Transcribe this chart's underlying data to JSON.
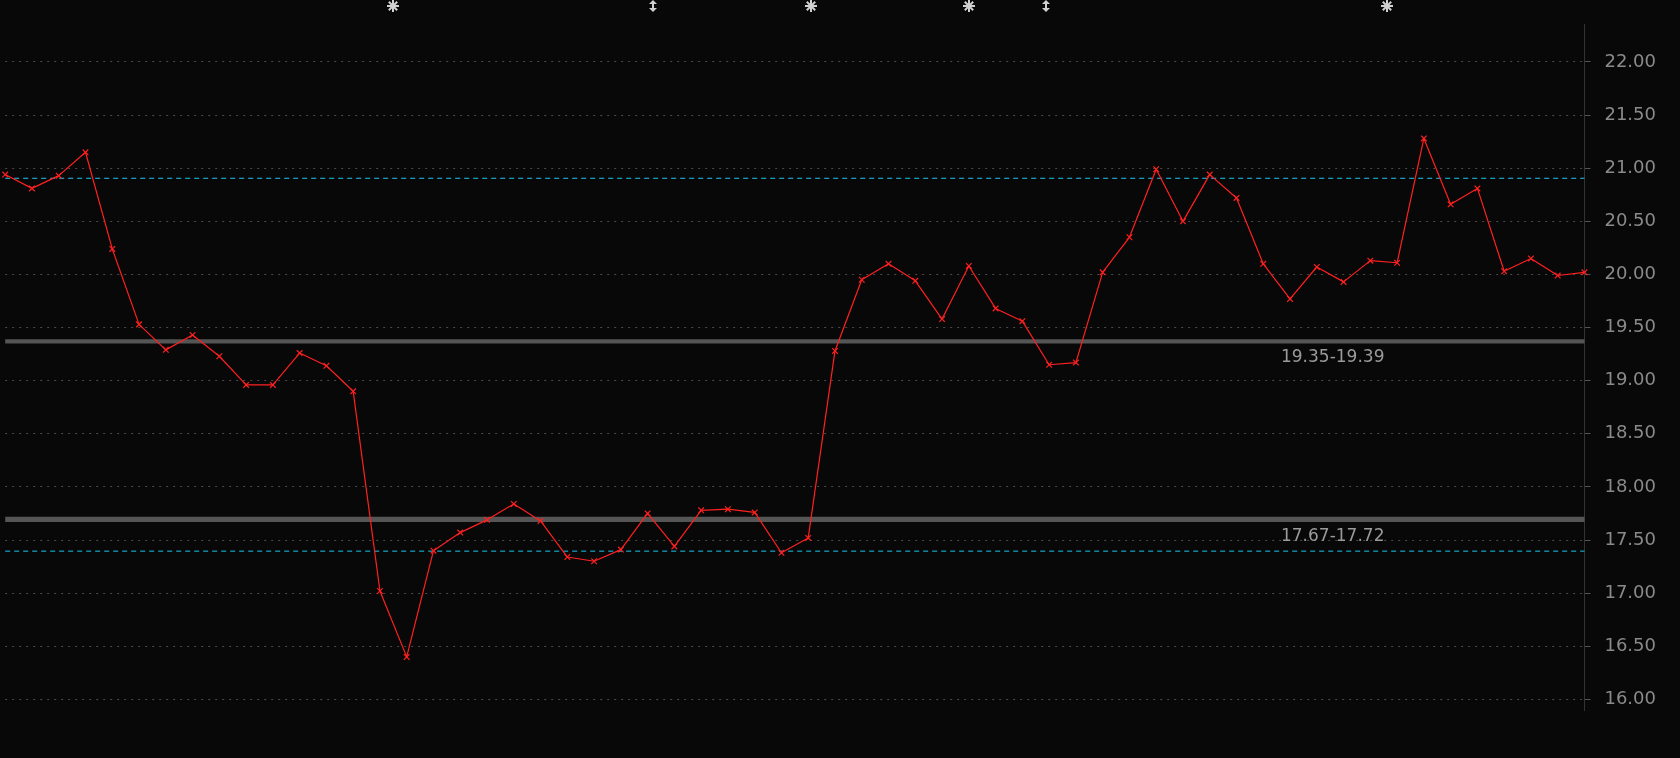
{
  "chart_data": {
    "type": "line",
    "categories": [
      null,
      null,
      null,
      null,
      null,
      null,
      null,
      null,
      null,
      null,
      null,
      null,
      null,
      null,
      null,
      null,
      null,
      null,
      null,
      null,
      null,
      null,
      null,
      null,
      null,
      null,
      null,
      null,
      null,
      null,
      null,
      null,
      null,
      null,
      null,
      null,
      null,
      null,
      null,
      null,
      null,
      null,
      null,
      null,
      null,
      null,
      null,
      null,
      null,
      null,
      null,
      null,
      null,
      null,
      null,
      null,
      null,
      null,
      null,
      null
    ],
    "series": [
      {
        "color": "#ff2020",
        "values": [
          20.94,
          20.81,
          20.93,
          21.15,
          20.24,
          19.53,
          19.29,
          19.43,
          19.23,
          18.96,
          18.96,
          19.26,
          19.14,
          18.9,
          17.02,
          16.4,
          17.4,
          17.57,
          17.69,
          17.84,
          17.68,
          17.34,
          17.3,
          17.41,
          17.75,
          17.44,
          17.78,
          17.79,
          17.76,
          17.38,
          17.52,
          19.28,
          19.95,
          20.1,
          19.94,
          19.58,
          20.08,
          19.68,
          19.56,
          19.15,
          19.17,
          20.02,
          20.35,
          20.99,
          20.5,
          20.94,
          20.72,
          20.1,
          19.77,
          20.07,
          19.93,
          20.13,
          20.11,
          21.28,
          20.66,
          20.81,
          20.03,
          20.15,
          19.99,
          20.02
        ]
      }
    ],
    "ylim": [
      15.9,
      22.35
    ],
    "yticks": [
      {
        "value": 16,
        "label": "16.00"
      },
      {
        "value": 16.5,
        "label": "16.50"
      },
      {
        "value": 17,
        "label": "17.00"
      },
      {
        "value": 17.5,
        "label": "17.50"
      },
      {
        "value": 18,
        "label": "18.00"
      },
      {
        "value": 18.5,
        "label": "18.50"
      },
      {
        "value": 19,
        "label": "19.00"
      },
      {
        "value": 19.5,
        "label": "19.50"
      },
      {
        "value": 20,
        "label": "20.00"
      },
      {
        "value": 20.5,
        "label": "20.50"
      },
      {
        "value": 21,
        "label": "21.00"
      },
      {
        "value": 21.5,
        "label": "21.50"
      },
      {
        "value": 22,
        "label": "22.00"
      }
    ],
    "grid": "y",
    "marker": "cross",
    "line_style": "solid",
    "legend": false,
    "ref_lines": [
      {
        "axis": "y",
        "value": 20.91,
        "color": "#1ec8f0",
        "line_style": "dashed"
      },
      {
        "axis": "y",
        "value": 17.4,
        "color": "#1ec8f0",
        "line_style": "dashed"
      }
    ],
    "bands": [
      {
        "axis": "y",
        "from": 19.35,
        "to": 19.39,
        "label": "19.35-19.39",
        "color": "#555555"
      },
      {
        "axis": "y",
        "from": 17.67,
        "to": 17.72,
        "label": "17.67-17.72",
        "color": "#555555"
      }
    ]
  }
}
